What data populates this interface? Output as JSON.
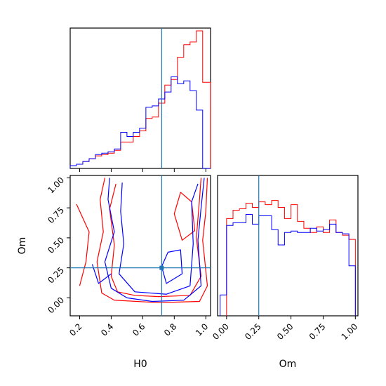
{
  "chart_data": [
    {
      "type": "histogram",
      "panel": "H0-marginal",
      "xlim": [
        0.14,
        1.03
      ],
      "truth": 0.72,
      "truth_color": "#1f77b4",
      "series": [
        {
          "color": "#ff0000",
          "bins": [
            0.14,
            0.18,
            0.22,
            0.26,
            0.3,
            0.34,
            0.38,
            0.42,
            0.46,
            0.5,
            0.54,
            0.58,
            0.62,
            0.66,
            0.7,
            0.74,
            0.78,
            0.82,
            0.86,
            0.9,
            0.94,
            0.98,
            1.03
          ],
          "heights": [
            0.02,
            0.03,
            0.05,
            0.07,
            0.09,
            0.1,
            0.11,
            0.13,
            0.19,
            0.19,
            0.23,
            0.27,
            0.36,
            0.37,
            0.47,
            0.6,
            0.64,
            0.8,
            0.89,
            0.91,
            0.99,
            0.62
          ]
        },
        {
          "color": "#0000ff",
          "bins": [
            0.14,
            0.18,
            0.22,
            0.26,
            0.3,
            0.34,
            0.38,
            0.42,
            0.46,
            0.5,
            0.54,
            0.58,
            0.62,
            0.66,
            0.7,
            0.74,
            0.78,
            0.82,
            0.86,
            0.9,
            0.94,
            0.98,
            1.03
          ],
          "heights": [
            0.02,
            0.03,
            0.05,
            0.07,
            0.1,
            0.11,
            0.12,
            0.14,
            0.26,
            0.23,
            0.26,
            0.29,
            0.44,
            0.45,
            0.5,
            0.55,
            0.66,
            0.61,
            0.63,
            0.56,
            0.42,
            0.0
          ]
        }
      ]
    },
    {
      "type": "histogram",
      "panel": "Om-marginal",
      "xlim": [
        -0.07,
        1.02
      ],
      "xlabel": "Om",
      "xticks": [
        "0.00",
        "0.25",
        "0.50",
        "0.75",
        "1.00"
      ],
      "truth": 0.25,
      "truth_color": "#1f77b4",
      "series": [
        {
          "color": "#ff0000",
          "bins": [
            0.0,
            0.05,
            0.1,
            0.15,
            0.2,
            0.25,
            0.3,
            0.35,
            0.4,
            0.45,
            0.5,
            0.55,
            0.6,
            0.65,
            0.7,
            0.75,
            0.8,
            0.85,
            0.9,
            0.95,
            1.0
          ],
          "heights": [
            0.7,
            0.76,
            0.77,
            0.81,
            0.78,
            0.82,
            0.8,
            0.83,
            0.78,
            0.7,
            0.8,
            0.68,
            0.63,
            0.6,
            0.64,
            0.6,
            0.69,
            0.6,
            0.58,
            0.55
          ]
        },
        {
          "color": "#0000ff",
          "bins": [
            -0.05,
            0.0,
            0.05,
            0.1,
            0.15,
            0.2,
            0.25,
            0.3,
            0.35,
            0.4,
            0.45,
            0.5,
            0.55,
            0.6,
            0.65,
            0.7,
            0.75,
            0.8,
            0.85,
            0.9,
            0.95,
            1.0
          ],
          "heights": [
            0.15,
            0.65,
            0.67,
            0.67,
            0.73,
            0.66,
            0.72,
            0.72,
            0.62,
            0.51,
            0.6,
            0.61,
            0.6,
            0.6,
            0.63,
            0.61,
            0.62,
            0.66,
            0.6,
            0.59,
            0.36
          ]
        }
      ]
    },
    {
      "type": "contour",
      "panel": "H0-Om",
      "xlim": [
        0.14,
        1.03
      ],
      "ylim": [
        -0.15,
        1.02
      ],
      "xlabel": "H0",
      "ylabel": "Om",
      "xticks": [
        "0.2",
        "0.4",
        "0.6",
        "0.8",
        "1.0"
      ],
      "yticks": [
        "0.00",
        "0.25",
        "0.50",
        "0.75",
        "1.00"
      ],
      "truth": [
        0.72,
        0.25
      ],
      "truth_color": "#1f77b4",
      "series": [
        {
          "color": "#ff0000",
          "contours": [
            [
              [
                0.36,
                1.0
              ],
              [
                0.33,
                0.82
              ],
              [
                0.35,
                0.55
              ],
              [
                0.31,
                0.3
              ],
              [
                0.34,
                0.04
              ],
              [
                0.42,
                -0.02
              ],
              [
                0.7,
                -0.04
              ],
              [
                0.96,
                -0.03
              ],
              [
                1.01,
                0.1
              ],
              [
                0.98,
                0.48
              ],
              [
                1.0,
                0.72
              ],
              [
                1.01,
                1.0
              ]
            ],
            [
              [
                0.43,
                0.95
              ],
              [
                0.39,
                0.74
              ],
              [
                0.42,
                0.44
              ],
              [
                0.4,
                0.18
              ],
              [
                0.44,
                0.05
              ],
              [
                0.55,
                0.02
              ],
              [
                0.7,
                0.01
              ],
              [
                0.9,
                0.02
              ],
              [
                0.97,
                0.18
              ],
              [
                0.94,
                0.5
              ],
              [
                0.96,
                0.82
              ],
              [
                0.97,
                1.0
              ]
            ],
            [
              [
                0.84,
                0.88
              ],
              [
                0.8,
                0.7
              ],
              [
                0.85,
                0.48
              ],
              [
                0.93,
                0.56
              ],
              [
                0.91,
                0.8
              ],
              [
                0.84,
                0.88
              ]
            ],
            [
              [
                0.18,
                0.78
              ],
              [
                0.26,
                0.55
              ],
              [
                0.24,
                0.3
              ],
              [
                0.2,
                0.1
              ]
            ]
          ]
        },
        {
          "color": "#0000ff",
          "contours": [
            [
              [
                0.39,
                1.0
              ],
              [
                0.38,
                0.82
              ],
              [
                0.42,
                0.55
              ],
              [
                0.36,
                0.3
              ],
              [
                0.4,
                0.08
              ],
              [
                0.5,
                0.0
              ],
              [
                0.66,
                -0.03
              ],
              [
                0.86,
                -0.02
              ],
              [
                0.97,
                0.1
              ],
              [
                0.95,
                0.48
              ],
              [
                0.97,
                0.75
              ],
              [
                0.99,
                1.0
              ]
            ],
            [
              [
                0.47,
                0.96
              ],
              [
                0.46,
                0.72
              ],
              [
                0.48,
                0.45
              ],
              [
                0.45,
                0.2
              ],
              [
                0.55,
                0.05
              ],
              [
                0.75,
                0.03
              ],
              [
                0.9,
                0.1
              ],
              [
                0.92,
                0.45
              ],
              [
                0.91,
                0.8
              ],
              [
                0.95,
                0.95
              ]
            ],
            [
              [
                0.76,
                0.38
              ],
              [
                0.72,
                0.26
              ],
              [
                0.75,
                0.12
              ],
              [
                0.85,
                0.2
              ],
              [
                0.84,
                0.4
              ],
              [
                0.76,
                0.38
              ]
            ],
            [
              [
                0.28,
                0.28
              ],
              [
                0.32,
                0.12
              ],
              [
                0.4,
                0.2
              ]
            ]
          ]
        }
      ]
    }
  ]
}
